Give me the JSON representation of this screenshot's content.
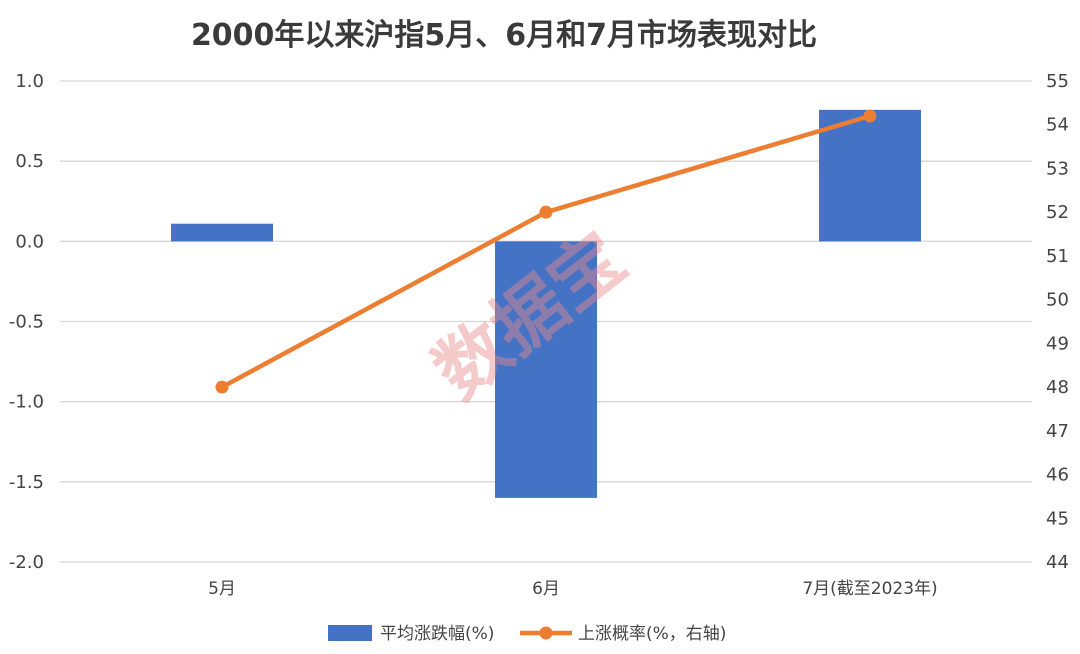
{
  "chart_data": {
    "type": "bar",
    "title": "2000年以来沪指5月、6月和7月市场表现对比",
    "categories": [
      "5月",
      "6月",
      "7月(截至2023年)"
    ],
    "series": [
      {
        "name": "平均涨跌幅(%)",
        "type": "bar",
        "axis": "left",
        "color": "#4472c4",
        "values": [
          0.11,
          -1.6,
          0.82
        ]
      },
      {
        "name": "上涨概率(%，右轴)",
        "type": "line",
        "axis": "right",
        "color": "#ed7d31",
        "values": [
          48.0,
          52.0,
          54.2
        ]
      }
    ],
    "y_left": {
      "range": [
        -2.0,
        1.0
      ],
      "ticks": [
        "1.0",
        "0.5",
        "0.0",
        "-0.5",
        "-1.0",
        "-1.5",
        "-2.0"
      ]
    },
    "y_right": {
      "range": [
        44,
        55
      ],
      "ticks": [
        "55",
        "54",
        "53",
        "52",
        "51",
        "50",
        "49",
        "48",
        "47",
        "46",
        "45",
        "44"
      ]
    },
    "grid": true,
    "legend": "bottom",
    "watermark": "数据宝"
  }
}
